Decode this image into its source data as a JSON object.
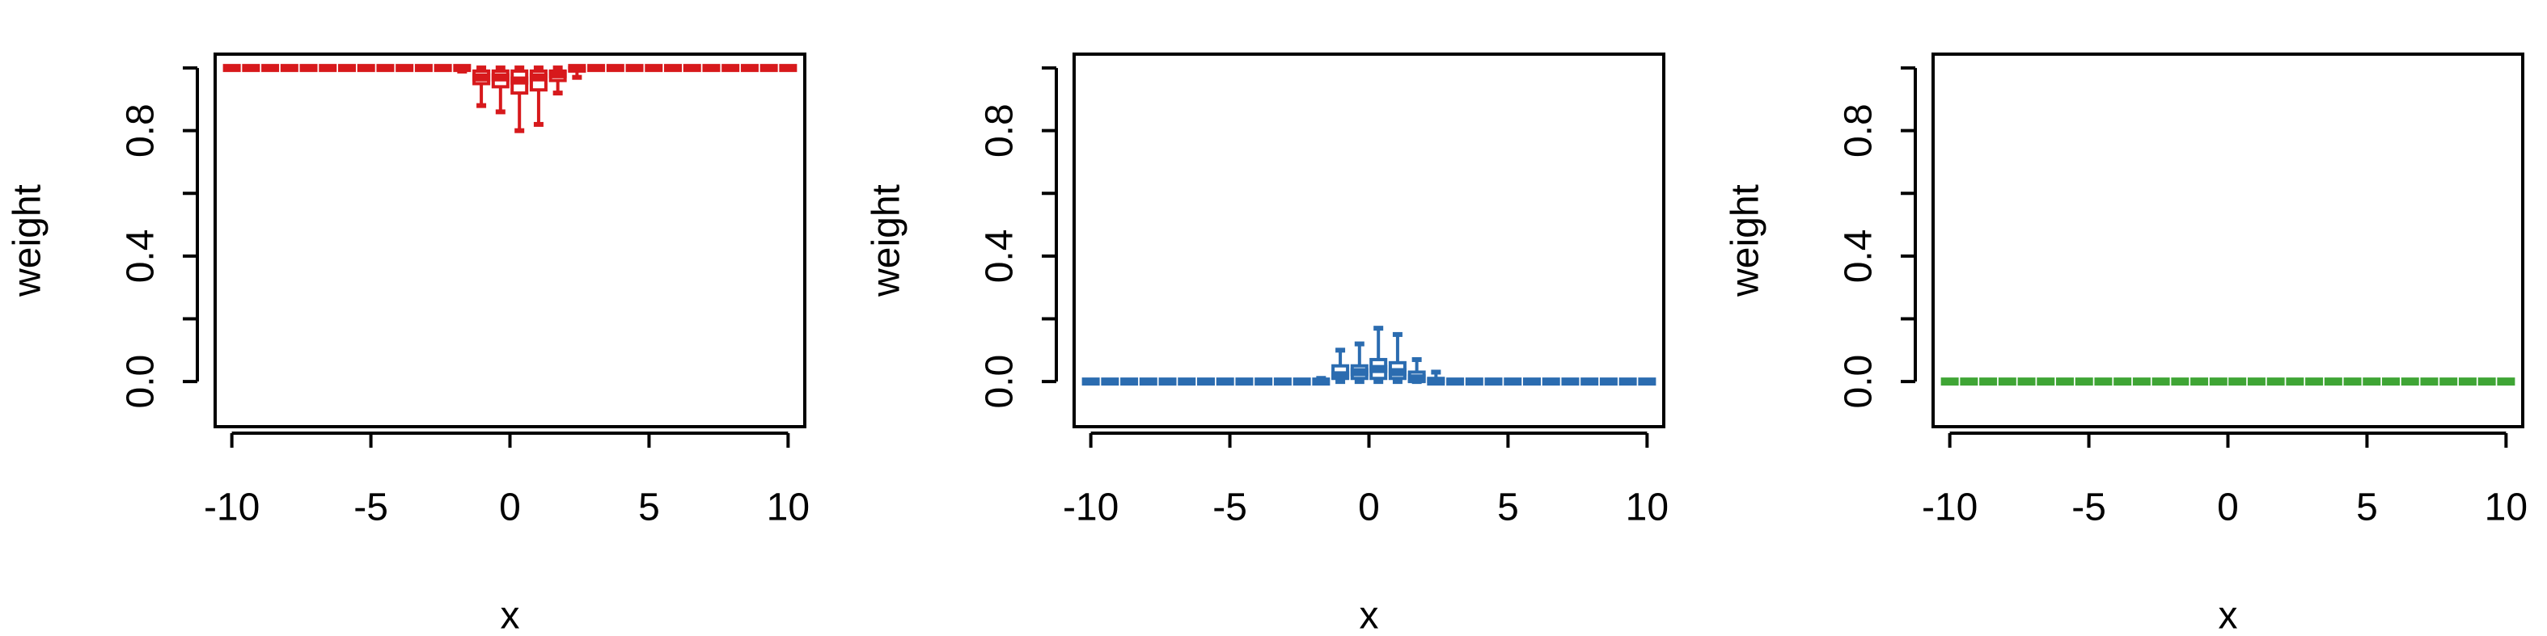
{
  "chart_data": [
    {
      "type": "boxplot",
      "xlabel": "x",
      "ylabel": "weight",
      "color": "#d7191c",
      "x": [
        -10,
        -9.31,
        -8.62,
        -7.93,
        -7.24,
        -6.55,
        -5.86,
        -5.17,
        -4.48,
        -3.79,
        -3.1,
        -2.41,
        -1.72,
        -1.03,
        -0.34,
        0.34,
        1.03,
        1.72,
        2.41,
        3.1,
        3.79,
        4.48,
        5.17,
        5.86,
        6.55,
        7.24,
        7.93,
        8.62,
        9.31,
        10
      ],
      "boxes": [
        [
          1,
          1,
          1,
          1,
          1
        ],
        [
          1,
          1,
          1,
          1,
          1
        ],
        [
          1,
          1,
          1,
          1,
          1
        ],
        [
          1,
          1,
          1,
          1,
          1
        ],
        [
          1,
          1,
          1,
          1,
          1
        ],
        [
          1,
          1,
          1,
          1,
          1
        ],
        [
          1,
          1,
          1,
          1,
          1
        ],
        [
          1,
          1,
          1,
          1,
          1
        ],
        [
          1,
          1,
          1,
          1,
          1
        ],
        [
          1,
          1,
          1,
          1,
          1
        ],
        [
          1,
          1,
          1,
          1,
          1
        ],
        [
          1,
          1,
          1,
          1,
          1
        ],
        [
          0.99,
          1,
          1,
          1,
          1
        ],
        [
          0.88,
          0.95,
          0.97,
          0.99,
          1
        ],
        [
          0.86,
          0.94,
          0.97,
          0.99,
          1
        ],
        [
          0.8,
          0.92,
          0.96,
          0.99,
          1
        ],
        [
          0.82,
          0.93,
          0.97,
          0.99,
          1
        ],
        [
          0.92,
          0.96,
          0.98,
          0.99,
          1
        ],
        [
          0.97,
          0.99,
          1,
          1,
          1
        ],
        [
          1,
          1,
          1,
          1,
          1
        ],
        [
          1,
          1,
          1,
          1,
          1
        ],
        [
          1,
          1,
          1,
          1,
          1
        ],
        [
          1,
          1,
          1,
          1,
          1
        ],
        [
          1,
          1,
          1,
          1,
          1
        ],
        [
          1,
          1,
          1,
          1,
          1
        ],
        [
          1,
          1,
          1,
          1,
          1
        ],
        [
          1,
          1,
          1,
          1,
          1
        ],
        [
          1,
          1,
          1,
          1,
          1
        ],
        [
          1,
          1,
          1,
          1,
          1
        ],
        [
          1,
          1,
          1,
          1,
          1
        ]
      ],
      "xlim": [
        -10.6,
        10.6
      ],
      "xticks": [
        -10,
        -5,
        0,
        5,
        10
      ],
      "ylim": [
        -0.144,
        1.044
      ],
      "yticks": [
        {
          "value": 0,
          "label": "0.0"
        },
        {
          "value": 0.4,
          "label": "0.4"
        },
        {
          "value": 0.8,
          "label": "0.8"
        }
      ],
      "yminor_ticks": [
        0.2,
        0.6,
        1
      ]
    },
    {
      "type": "boxplot",
      "xlabel": "x",
      "ylabel": "weight",
      "color": "#2b6cb0",
      "x": [
        -10,
        -9.31,
        -8.62,
        -7.93,
        -7.24,
        -6.55,
        -5.86,
        -5.17,
        -4.48,
        -3.79,
        -3.1,
        -2.41,
        -1.72,
        -1.03,
        -0.34,
        0.34,
        1.03,
        1.72,
        2.41,
        3.1,
        3.79,
        4.48,
        5.17,
        5.86,
        6.55,
        7.24,
        7.93,
        8.62,
        9.31,
        10
      ],
      "boxes": [
        [
          0,
          0,
          0,
          0,
          0
        ],
        [
          0,
          0,
          0,
          0,
          0
        ],
        [
          0,
          0,
          0,
          0,
          0
        ],
        [
          0,
          0,
          0,
          0,
          0
        ],
        [
          0,
          0,
          0,
          0,
          0
        ],
        [
          0,
          0,
          0,
          0,
          0
        ],
        [
          0,
          0,
          0,
          0,
          0
        ],
        [
          0,
          0,
          0,
          0,
          0
        ],
        [
          0,
          0,
          0,
          0,
          0
        ],
        [
          0,
          0,
          0,
          0,
          0
        ],
        [
          0,
          0,
          0,
          0,
          0
        ],
        [
          0,
          0,
          0,
          0,
          0
        ],
        [
          0,
          0,
          0,
          0,
          0.01
        ],
        [
          0,
          0.01,
          0.02,
          0.05,
          0.1
        ],
        [
          0,
          0.01,
          0.03,
          0.05,
          0.12
        ],
        [
          0,
          0.01,
          0.04,
          0.07,
          0.17
        ],
        [
          0,
          0.01,
          0.03,
          0.06,
          0.15
        ],
        [
          0,
          0,
          0.01,
          0.03,
          0.07
        ],
        [
          0,
          0,
          0,
          0.01,
          0.03
        ],
        [
          0,
          0,
          0,
          0,
          0
        ],
        [
          0,
          0,
          0,
          0,
          0
        ],
        [
          0,
          0,
          0,
          0,
          0
        ],
        [
          0,
          0,
          0,
          0,
          0
        ],
        [
          0,
          0,
          0,
          0,
          0
        ],
        [
          0,
          0,
          0,
          0,
          0
        ],
        [
          0,
          0,
          0,
          0,
          0
        ],
        [
          0,
          0,
          0,
          0,
          0
        ],
        [
          0,
          0,
          0,
          0,
          0
        ],
        [
          0,
          0,
          0,
          0,
          0
        ],
        [
          0,
          0,
          0,
          0,
          0
        ]
      ],
      "xlim": [
        -10.6,
        10.6
      ],
      "xticks": [
        -10,
        -5,
        0,
        5,
        10
      ],
      "ylim": [
        -0.144,
        1.044
      ],
      "yticks": [
        {
          "value": 0,
          "label": "0.0"
        },
        {
          "value": 0.4,
          "label": "0.4"
        },
        {
          "value": 0.8,
          "label": "0.8"
        }
      ],
      "yminor_ticks": [
        0.2,
        0.6,
        1
      ]
    },
    {
      "type": "boxplot",
      "xlabel": "x",
      "ylabel": "weight",
      "color": "#3fa535",
      "x": [
        -10,
        -9.31,
        -8.62,
        -7.93,
        -7.24,
        -6.55,
        -5.86,
        -5.17,
        -4.48,
        -3.79,
        -3.1,
        -2.41,
        -1.72,
        -1.03,
        -0.34,
        0.34,
        1.03,
        1.72,
        2.41,
        3.1,
        3.79,
        4.48,
        5.17,
        5.86,
        6.55,
        7.24,
        7.93,
        8.62,
        9.31,
        10
      ],
      "boxes": [
        [
          0,
          0,
          0,
          0,
          0
        ],
        [
          0,
          0,
          0,
          0,
          0
        ],
        [
          0,
          0,
          0,
          0,
          0
        ],
        [
          0,
          0,
          0,
          0,
          0
        ],
        [
          0,
          0,
          0,
          0,
          0
        ],
        [
          0,
          0,
          0,
          0,
          0
        ],
        [
          0,
          0,
          0,
          0,
          0
        ],
        [
          0,
          0,
          0,
          0,
          0
        ],
        [
          0,
          0,
          0,
          0,
          0
        ],
        [
          0,
          0,
          0,
          0,
          0
        ],
        [
          0,
          0,
          0,
          0,
          0
        ],
        [
          0,
          0,
          0,
          0,
          0
        ],
        [
          0,
          0,
          0,
          0,
          0
        ],
        [
          0,
          0,
          0,
          0,
          0
        ],
        [
          0,
          0,
          0,
          0,
          0
        ],
        [
          0,
          0,
          0,
          0,
          0
        ],
        [
          0,
          0,
          0,
          0,
          0
        ],
        [
          0,
          0,
          0,
          0,
          0
        ],
        [
          0,
          0,
          0,
          0,
          0
        ],
        [
          0,
          0,
          0,
          0,
          0
        ],
        [
          0,
          0,
          0,
          0,
          0
        ],
        [
          0,
          0,
          0,
          0,
          0
        ],
        [
          0,
          0,
          0,
          0,
          0
        ],
        [
          0,
          0,
          0,
          0,
          0
        ],
        [
          0,
          0,
          0,
          0,
          0
        ],
        [
          0,
          0,
          0,
          0,
          0
        ],
        [
          0,
          0,
          0,
          0,
          0
        ],
        [
          0,
          0,
          0,
          0,
          0
        ],
        [
          0,
          0,
          0,
          0,
          0
        ],
        [
          0,
          0,
          0,
          0,
          0
        ]
      ],
      "xlim": [
        -10.6,
        10.6
      ],
      "xticks": [
        -10,
        -5,
        0,
        5,
        10
      ],
      "ylim": [
        -0.144,
        1.044
      ],
      "yticks": [
        {
          "value": 0,
          "label": "0.0"
        },
        {
          "value": 0.4,
          "label": "0.4"
        },
        {
          "value": 0.8,
          "label": "0.8"
        }
      ],
      "yminor_ticks": [
        0.2,
        0.6,
        1
      ]
    }
  ]
}
